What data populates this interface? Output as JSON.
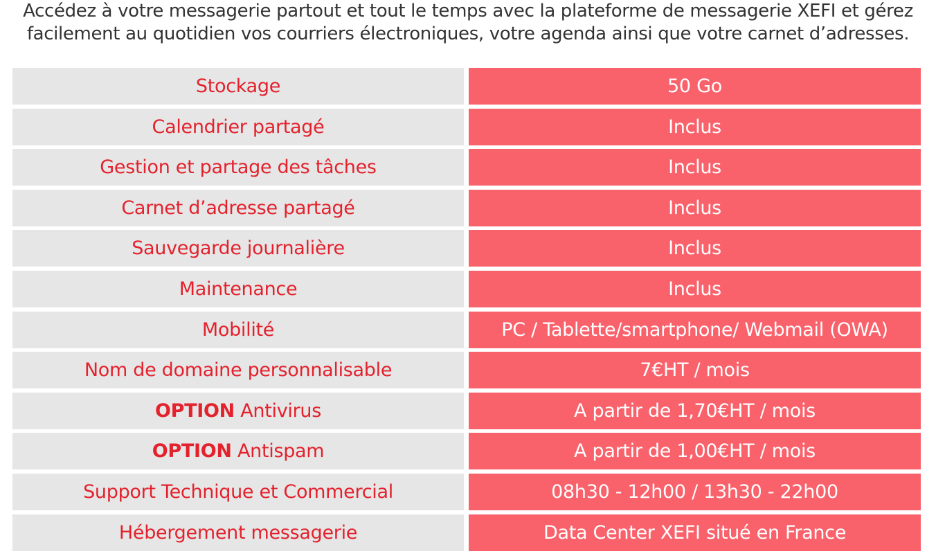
{
  "intro": {
    "line1": "Accédez à votre messagerie partout et tout le temps avec la plateforme de messagerie XEFI et gérez",
    "line2": "facilement au quotidien vos courriers électroniques, votre agenda ainsi que votre carnet d’adresses."
  },
  "colors": {
    "label_bg": "#e6e6e6",
    "label_text": "#e3222d",
    "value_bg": "#f9616b",
    "value_text": "#ffffff"
  },
  "rows": [
    {
      "option": "",
      "label": "Stockage",
      "value": "50 Go"
    },
    {
      "option": "",
      "label": "Calendrier partagé",
      "value": "Inclus"
    },
    {
      "option": "",
      "label": "Gestion et partage des tâches",
      "value": "Inclus"
    },
    {
      "option": "",
      "label": "Carnet d’adresse partagé",
      "value": "Inclus"
    },
    {
      "option": "",
      "label": "Sauvegarde journalière",
      "value": "Inclus"
    },
    {
      "option": "",
      "label": "Maintenance",
      "value": "Inclus"
    },
    {
      "option": "",
      "label": "Mobilité",
      "value": "PC / Tablette/smartphone/ Webmail (OWA)"
    },
    {
      "option": "",
      "label": "Nom de domaine personnalisable",
      "value": "7€HT / mois"
    },
    {
      "option": "OPTION",
      "label": "Antivirus",
      "value": "A partir de 1,70€HT / mois"
    },
    {
      "option": "OPTION",
      "label": "Antispam",
      "value": "A partir de 1,00€HT / mois"
    },
    {
      "option": "",
      "label": "Support Technique et Commercial",
      "value": "08h30 - 12h00 / 13h30 - 22h00"
    },
    {
      "option": "",
      "label": "Hébergement messagerie",
      "value": "Data Center XEFI situé en France"
    }
  ]
}
